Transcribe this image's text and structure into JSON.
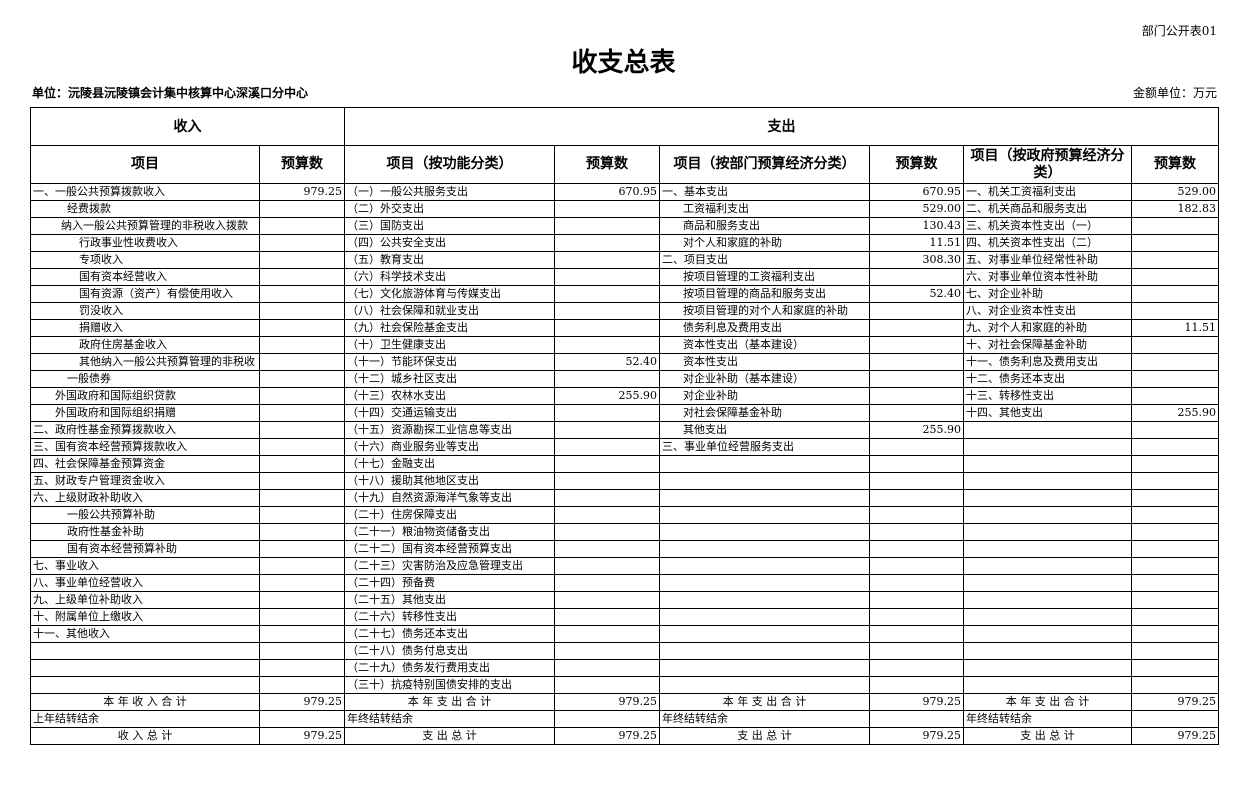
{
  "header": {
    "form_no": "部门公开表01",
    "title": "收支总表",
    "unit": "单位：沅陵县沅陵镇会计集中核算中心深溪口分中心",
    "amount_unit": "金额单位：万元"
  },
  "table": {
    "groups": [
      "收入",
      "支出"
    ],
    "columns": [
      "项目",
      "预算数",
      "项目（按功能分类）",
      "预算数",
      "项目（按部门预算经济分类）",
      "预算数",
      "项目（按政府预算经济分类）",
      "预算数"
    ],
    "rows": [
      [
        "一、一般公共预算拨款收入",
        "979.25",
        "（一）一般公共服务支出",
        "670.95",
        "一、基本支出",
        "670.95",
        "一、机关工资福利支出",
        "529.00"
      ],
      [
        "经费拨款",
        null,
        "（二）外交支出",
        null,
        "工资福利支出",
        "529.00",
        "二、机关商品和服务支出",
        "182.83"
      ],
      [
        "纳入一般公共预算管理的非税收入拨款",
        null,
        "（三）国防支出",
        null,
        "商品和服务支出",
        "130.43",
        "三、机关资本性支出（一）",
        null
      ],
      [
        "行政事业性收费收入",
        null,
        "（四）公共安全支出",
        null,
        "对个人和家庭的补助",
        "11.51",
        "四、机关资本性支出（二）",
        null
      ],
      [
        "专项收入",
        null,
        "（五）教育支出",
        null,
        "二、项目支出",
        "308.30",
        "五、对事业单位经常性补助",
        null
      ],
      [
        "国有资本经营收入",
        null,
        "（六）科学技术支出",
        null,
        "按项目管理的工资福利支出",
        null,
        "六、对事业单位资本性补助",
        null
      ],
      [
        "国有资源（资产）有偿使用收入",
        null,
        "（七）文化旅游体育与传媒支出",
        null,
        "按项目管理的商品和服务支出",
        "52.40",
        "七、对企业补助",
        null
      ],
      [
        "罚没收入",
        null,
        "（八）社会保障和就业支出",
        null,
        "按项目管理的对个人和家庭的补助",
        null,
        "八、对企业资本性支出",
        null
      ],
      [
        "捐赠收入",
        null,
        "（九）社会保险基金支出",
        null,
        "债务利息及费用支出",
        null,
        "九、对个人和家庭的补助",
        "11.51"
      ],
      [
        "政府住房基金收入",
        null,
        "（十）卫生健康支出",
        null,
        "资本性支出（基本建设）",
        null,
        "十、对社会保障基金补助",
        null
      ],
      [
        "其他纳入一般公共预算管理的非税收",
        null,
        "（十一）节能环保支出",
        "52.40",
        "资本性支出",
        null,
        "十一、债务利息及费用支出",
        null
      ],
      [
        "一般债券",
        null,
        "（十二）城乡社区支出",
        null,
        "对企业补助（基本建设）",
        null,
        "十二、债务还本支出",
        null
      ],
      [
        "外国政府和国际组织贷款",
        null,
        "（十三）农林水支出",
        "255.90",
        "对企业补助",
        null,
        "十三、转移性支出",
        null
      ],
      [
        "外国政府和国际组织捐赠",
        null,
        "（十四）交通运输支出",
        null,
        "对社会保障基金补助",
        null,
        "十四、其他支出",
        "255.90"
      ],
      [
        "二、政府性基金预算拨款收入",
        null,
        "（十五）资源勘探工业信息等支出",
        null,
        "其他支出",
        "255.90",
        null,
        null
      ],
      [
        "三、国有资本经营预算拨款收入",
        null,
        "（十六）商业服务业等支出",
        null,
        "三、事业单位经营服务支出",
        null,
        null,
        null
      ],
      [
        "四、社会保障基金预算资金",
        null,
        "（十七）金融支出",
        null,
        null,
        null,
        null,
        null
      ],
      [
        "五、财政专户管理资金收入",
        null,
        "（十八）援助其他地区支出",
        null,
        null,
        null,
        null,
        null
      ],
      [
        "六、上级财政补助收入",
        null,
        "（十九）自然资源海洋气象等支出",
        null,
        null,
        null,
        null,
        null
      ],
      [
        "一般公共预算补助",
        null,
        "（二十）住房保障支出",
        null,
        null,
        null,
        null,
        null
      ],
      [
        "政府性基金补助",
        null,
        "（二十一）粮油物资储备支出",
        null,
        null,
        null,
        null,
        null
      ],
      [
        "国有资本经营预算补助",
        null,
        "（二十二）国有资本经营预算支出",
        null,
        null,
        null,
        null,
        null
      ],
      [
        "七、事业收入",
        null,
        "（二十三）灾害防治及应急管理支出",
        null,
        null,
        null,
        null,
        null
      ],
      [
        "八、事业单位经营收入",
        null,
        "（二十四）预备费",
        null,
        null,
        null,
        null,
        null
      ],
      [
        "九、上级单位补助收入",
        null,
        "（二十五）其他支出",
        null,
        null,
        null,
        null,
        null
      ],
      [
        "十、附属单位上缴收入",
        null,
        "（二十六）转移性支出",
        null,
        null,
        null,
        null,
        null
      ],
      [
        "十一、其他收入",
        null,
        "（二十七）债务还本支出",
        null,
        null,
        null,
        null,
        null
      ],
      [
        null,
        null,
        "（二十八）债务付息支出",
        null,
        null,
        null,
        null,
        null
      ],
      [
        null,
        null,
        "（二十九）债务发行费用支出",
        null,
        null,
        null,
        null,
        null
      ],
      [
        null,
        null,
        "（三十）抗疫特别国债安排的支出",
        null,
        null,
        null,
        null,
        null
      ]
    ],
    "summary": [
      [
        "本 年 收 入 合 计",
        "979.25",
        "本 年 支 出 合 计",
        "979.25",
        "本 年 支 出 合 计",
        "979.25",
        "本 年 支 出 合 计",
        "979.25"
      ],
      [
        "上年结转结余",
        null,
        "年终结转结余",
        null,
        "年终结转结余",
        null,
        "年终结转结余",
        null
      ],
      [
        "收 入 总 计",
        "979.25",
        "支 出 总 计",
        "979.25",
        "支 出 总 计",
        "979.25",
        "支 出 总 计",
        "979.25"
      ]
    ]
  }
}
